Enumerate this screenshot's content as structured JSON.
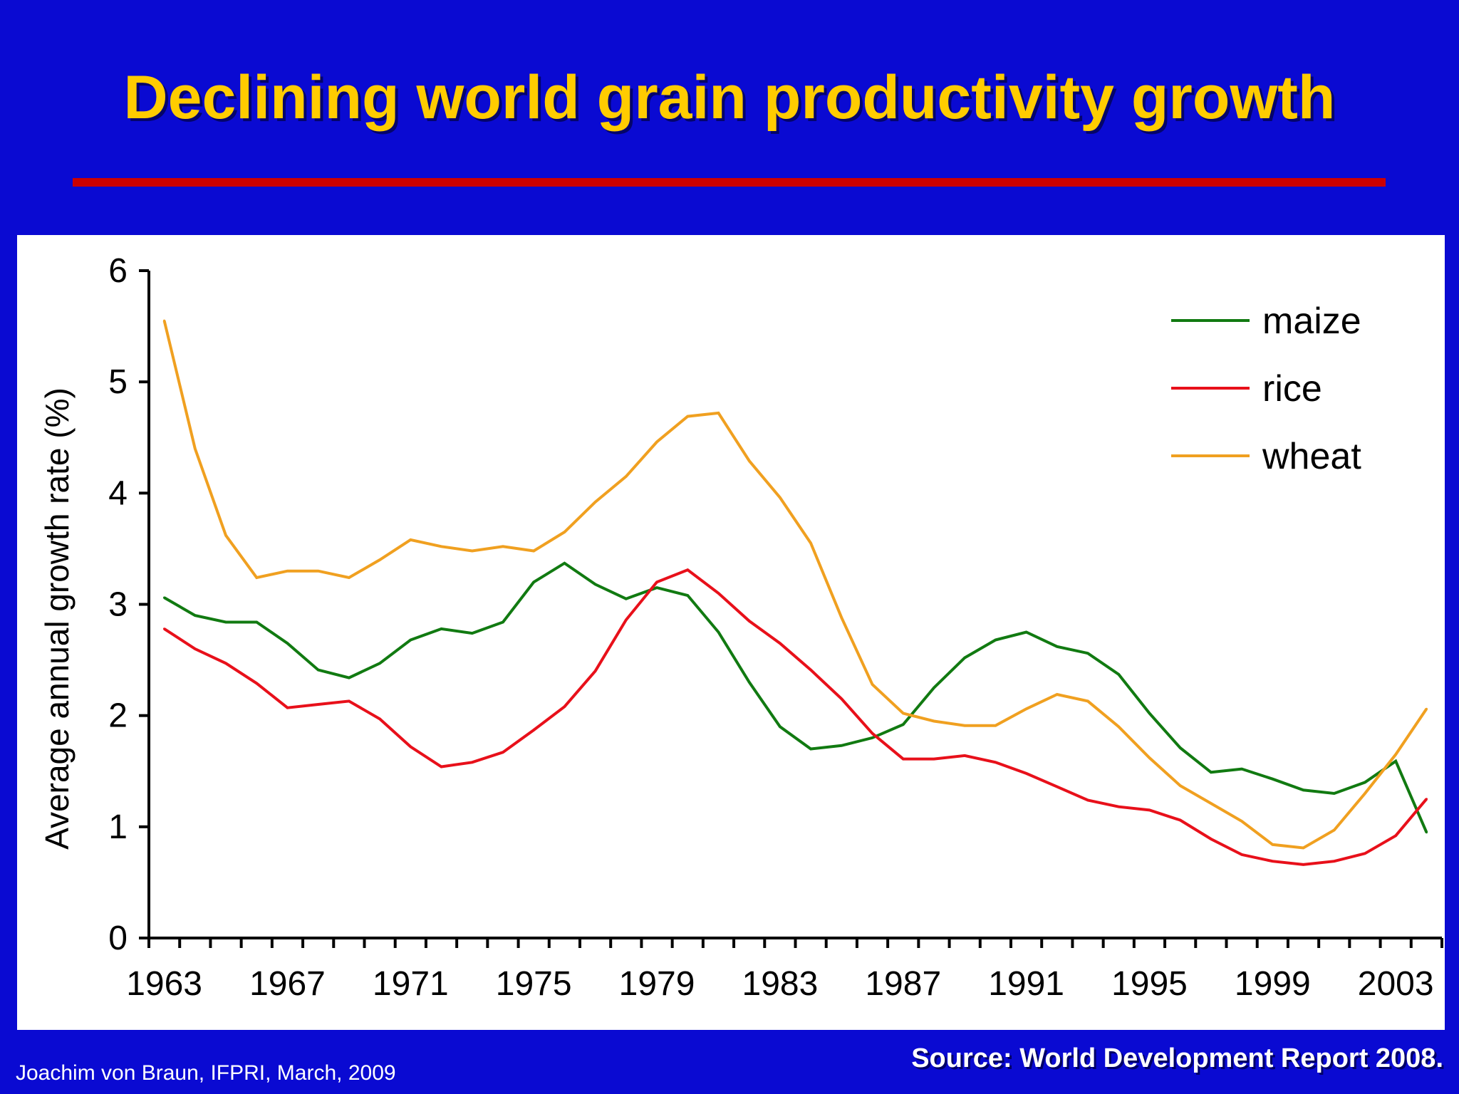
{
  "slide": {
    "title": "Declining world grain productivity growth",
    "author_note": "Joachim von Braun, IFPRI, March, 2009",
    "source": "Source: World Development Report 2008."
  },
  "colors": {
    "background": "#0a0ad2",
    "title": "#ffcc00",
    "rule": "#cc0000",
    "panel": "#ffffff"
  },
  "chart_data": {
    "type": "line",
    "ylabel": "Average annual growth rate (%)",
    "xlabel": "",
    "ylim": [
      0,
      6
    ],
    "yticks": [
      0,
      1,
      2,
      3,
      4,
      5,
      6
    ],
    "xlim": [
      1962.5,
      2004.5
    ],
    "x_tick_labels": [
      "1963",
      "1967",
      "1971",
      "1975",
      "1979",
      "1983",
      "1987",
      "1991",
      "1995",
      "1999",
      "2003"
    ],
    "grid": false,
    "legend_position": "top-right",
    "x": [
      1963,
      1964,
      1965,
      1966,
      1967,
      1968,
      1969,
      1970,
      1971,
      1972,
      1973,
      1974,
      1975,
      1976,
      1977,
      1978,
      1979,
      1980,
      1981,
      1982,
      1983,
      1984,
      1985,
      1986,
      1987,
      1988,
      1989,
      1990,
      1991,
      1992,
      1993,
      1994,
      1995,
      1996,
      1997,
      1998,
      1999,
      2000,
      2001,
      2002,
      2003,
      2004
    ],
    "series": [
      {
        "name": "maize",
        "color": "#117a11",
        "values": [
          3.06,
          2.9,
          2.84,
          2.84,
          2.65,
          2.41,
          2.34,
          2.47,
          2.68,
          2.78,
          2.74,
          2.84,
          3.2,
          3.37,
          3.18,
          3.05,
          3.15,
          3.08,
          2.75,
          2.3,
          1.9,
          1.7,
          1.73,
          1.8,
          1.92,
          2.25,
          2.52,
          2.68,
          2.75,
          2.62,
          2.56,
          2.37,
          2.02,
          1.71,
          1.49,
          1.52,
          1.43,
          1.33,
          1.3,
          1.4,
          1.59,
          0.95
        ]
      },
      {
        "name": "rice",
        "color": "#e8101a",
        "values": [
          2.78,
          2.6,
          2.47,
          2.29,
          2.07,
          2.1,
          2.13,
          1.97,
          1.72,
          1.54,
          1.58,
          1.67,
          1.87,
          2.08,
          2.4,
          2.86,
          3.2,
          3.31,
          3.1,
          2.85,
          2.65,
          2.41,
          2.15,
          1.84,
          1.61,
          1.61,
          1.64,
          1.58,
          1.48,
          1.36,
          1.24,
          1.18,
          1.15,
          1.06,
          0.89,
          0.75,
          0.69,
          0.66,
          0.69,
          0.76,
          0.92,
          1.25
        ]
      },
      {
        "name": "wheat",
        "color": "#f0a020",
        "values": [
          5.55,
          4.4,
          3.62,
          3.24,
          3.3,
          3.3,
          3.24,
          3.4,
          3.58,
          3.52,
          3.48,
          3.52,
          3.48,
          3.65,
          3.92,
          4.15,
          4.46,
          4.69,
          4.72,
          4.29,
          3.96,
          3.55,
          2.88,
          2.28,
          2.02,
          1.95,
          1.91,
          1.91,
          2.06,
          2.19,
          2.13,
          1.9,
          1.62,
          1.37,
          1.21,
          1.05,
          0.84,
          0.81,
          0.97,
          1.3,
          1.65,
          2.06
        ]
      }
    ]
  }
}
